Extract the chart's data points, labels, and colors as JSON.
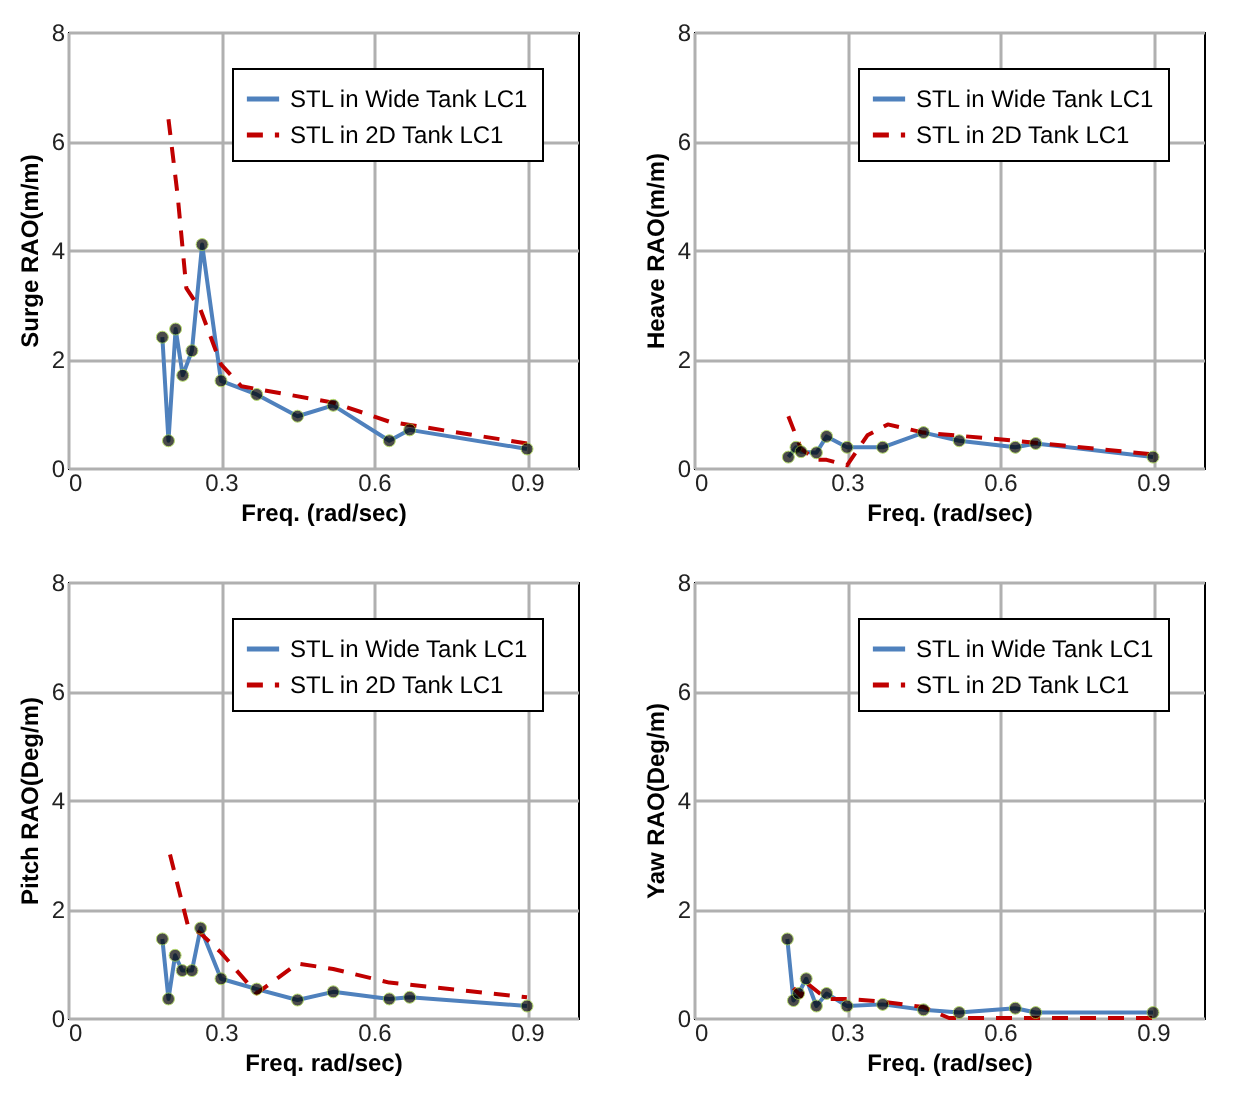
{
  "chart_data": [
    {
      "type": "line",
      "xlabel": "Freq. (rad/sec)",
      "ylabel": "Surge  RAO(m/m)",
      "xlim": [
        0,
        1
      ],
      "xticks": [
        0,
        0.3,
        0.6,
        0.9
      ],
      "ylim": [
        0,
        8
      ],
      "yticks": [
        0,
        2,
        4,
        6,
        8
      ],
      "grid": true,
      "legend": "top right",
      "series": [
        {
          "name": "STL in Wide Tank LC1",
          "color": "#4f81bd",
          "marker": "circle",
          "line_style": "solid",
          "x": [
            0.185,
            0.197,
            0.211,
            0.225,
            0.243,
            0.263,
            0.3,
            0.37,
            0.45,
            0.52,
            0.63,
            0.67,
            0.9
          ],
          "values": [
            2.4,
            0.5,
            2.55,
            1.7,
            2.15,
            4.1,
            1.6,
            1.35,
            0.95,
            1.15,
            0.5,
            0.7,
            0.35
          ]
        },
        {
          "name": "STL in 2D Tank LC1",
          "color": "#c00000",
          "marker": "none",
          "line_style": "dashed",
          "x": [
            0.197,
            0.215,
            0.232,
            0.26,
            0.3,
            0.34,
            0.37,
            0.52,
            0.63,
            0.9
          ],
          "values": [
            6.4,
            5.0,
            3.3,
            2.9,
            1.9,
            1.5,
            1.45,
            1.2,
            0.85,
            0.45
          ]
        }
      ]
    },
    {
      "type": "line",
      "xlabel": "Freq. (rad/sec)",
      "ylabel": "Heave  RAO(m/m)",
      "xlim": [
        0,
        1
      ],
      "xticks": [
        0,
        0.3,
        0.6,
        0.9
      ],
      "ylim": [
        0,
        8
      ],
      "yticks": [
        0,
        2,
        4,
        6,
        8
      ],
      "grid": true,
      "legend": "top right",
      "series": [
        {
          "name": "STL in Wide Tank LC1",
          "color": "#4f81bd",
          "marker": "circle",
          "line_style": "solid",
          "x": [
            0.185,
            0.2,
            0.21,
            0.24,
            0.26,
            0.3,
            0.37,
            0.45,
            0.52,
            0.63,
            0.67,
            0.9
          ],
          "values": [
            0.2,
            0.38,
            0.3,
            0.28,
            0.58,
            0.38,
            0.38,
            0.65,
            0.5,
            0.38,
            0.45,
            0.2
          ]
        },
        {
          "name": "STL in 2D Tank LC1",
          "color": "#c00000",
          "marker": "none",
          "line_style": "dashed",
          "x": [
            0.185,
            0.21,
            0.24,
            0.26,
            0.3,
            0.34,
            0.38,
            0.45,
            0.63,
            0.9
          ],
          "values": [
            0.95,
            0.35,
            0.15,
            0.15,
            0.05,
            0.6,
            0.8,
            0.65,
            0.5,
            0.25
          ]
        }
      ]
    },
    {
      "type": "line",
      "xlabel": "Freq. rad/sec)",
      "ylabel": "Pitch  RAO(Deg/m)",
      "xlim": [
        0,
        1
      ],
      "xticks": [
        0,
        0.3,
        0.6,
        0.9
      ],
      "ylim": [
        0,
        8
      ],
      "yticks": [
        0,
        2,
        4,
        6,
        8
      ],
      "grid": true,
      "legend": "top right",
      "series": [
        {
          "name": "STL in Wide Tank LC1",
          "color": "#4f81bd",
          "marker": "circle",
          "line_style": "solid",
          "x": [
            0.185,
            0.197,
            0.21,
            0.224,
            0.243,
            0.26,
            0.3,
            0.37,
            0.45,
            0.52,
            0.63,
            0.67,
            0.9
          ],
          "values": [
            1.45,
            0.35,
            1.15,
            0.87,
            0.87,
            1.65,
            0.72,
            0.53,
            0.33,
            0.48,
            0.35,
            0.38,
            0.22
          ]
        },
        {
          "name": "STL in 2D Tank LC1",
          "color": "#c00000",
          "marker": "none",
          "line_style": "dashed",
          "x": [
            0.2,
            0.235,
            0.26,
            0.3,
            0.37,
            0.45,
            0.52,
            0.63,
            0.9
          ],
          "values": [
            3.0,
            1.7,
            1.55,
            1.2,
            0.45,
            1.0,
            0.9,
            0.65,
            0.38
          ]
        }
      ]
    },
    {
      "type": "line",
      "xlabel": "Freq. (rad/sec)",
      "ylabel": "Yaw  RAO(Deg/m)",
      "xlim": [
        0,
        1
      ],
      "xticks": [
        0,
        0.3,
        0.6,
        0.9
      ],
      "ylim": [
        0,
        8
      ],
      "yticks": [
        0,
        2,
        4,
        6,
        8
      ],
      "grid": true,
      "legend": "top right",
      "series": [
        {
          "name": "STL in Wide Tank LC1",
          "color": "#4f81bd",
          "marker": "circle",
          "line_style": "solid",
          "x": [
            0.183,
            0.195,
            0.205,
            0.22,
            0.24,
            0.26,
            0.3,
            0.37,
            0.45,
            0.52,
            0.63,
            0.67,
            0.9
          ],
          "values": [
            1.45,
            0.32,
            0.45,
            0.72,
            0.22,
            0.45,
            0.22,
            0.25,
            0.15,
            0.1,
            0.18,
            0.1,
            0.1
          ]
        },
        {
          "name": "STL in 2D Tank LC1",
          "color": "#c00000",
          "marker": "none",
          "line_style": "dashed",
          "x": [
            0.195,
            0.21,
            0.22,
            0.26,
            0.3,
            0.37,
            0.45,
            0.5,
            0.9
          ],
          "values": [
            0.55,
            0.4,
            0.65,
            0.35,
            0.35,
            0.3,
            0.2,
            0,
            0
          ]
        }
      ]
    }
  ]
}
